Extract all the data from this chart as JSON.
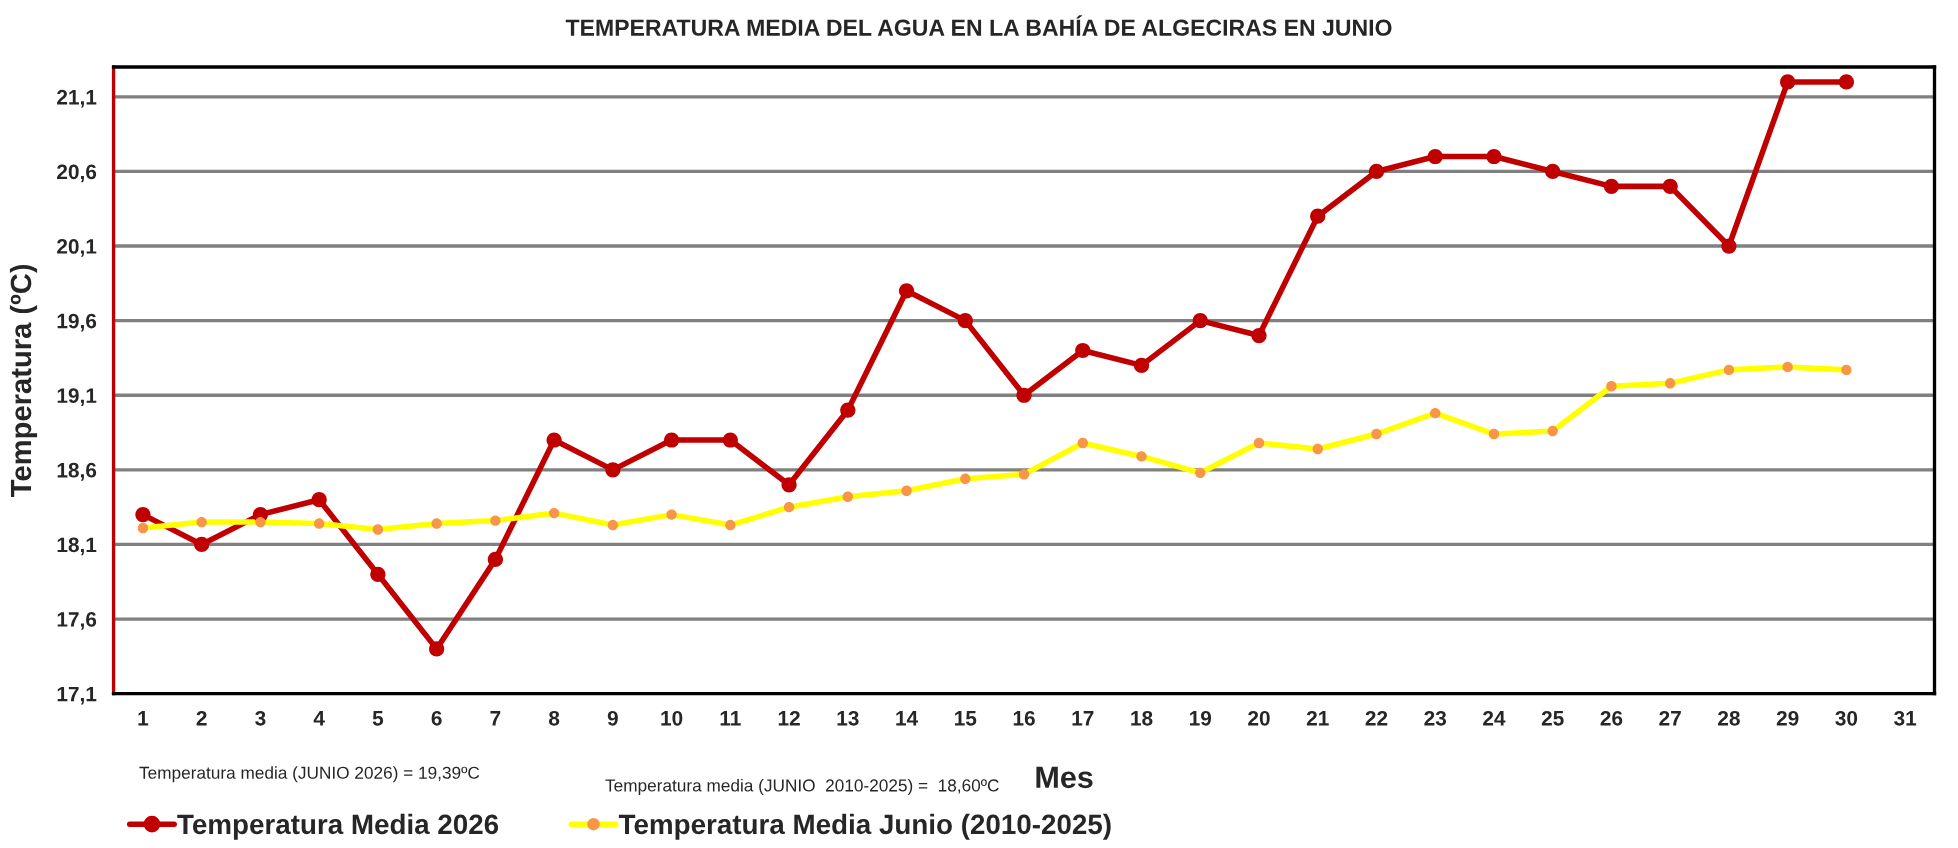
{
  "chart_data": {
    "type": "line",
    "title": "TEMPERATURA MEDIA DEL AGUA EN LA BAHÍA DE ALGECIRAS EN JUNIO",
    "xlabel": "Mes",
    "ylabel": "Temperatura (ºC)",
    "categories": [
      "1",
      "2",
      "3",
      "4",
      "5",
      "6",
      "7",
      "8",
      "9",
      "10",
      "11",
      "12",
      "13",
      "14",
      "15",
      "16",
      "17",
      "18",
      "19",
      "20",
      "21",
      "22",
      "23",
      "24",
      "25",
      "26",
      "27",
      "28",
      "29",
      "30",
      "31"
    ],
    "series": [
      {
        "name": "Temperatura Media 2026",
        "color": "#c00000",
        "values": [
          18.3,
          18.1,
          18.3,
          18.4,
          17.9,
          17.4,
          18.0,
          18.8,
          18.6,
          18.8,
          18.8,
          18.5,
          19.0,
          19.8,
          19.6,
          19.1,
          19.4,
          19.3,
          19.6,
          19.5,
          20.3,
          20.6,
          20.7,
          20.7,
          20.6,
          20.5,
          20.5,
          20.1,
          21.2,
          21.2,
          null
        ]
      },
      {
        "name": "Temperatura Media Junio (2010-2025)",
        "color": "#ffff00",
        "colors": [
          "#f79646",
          "#f79646",
          "#f79646",
          "#f79646",
          "#f79646",
          "#f79646",
          "#f79646",
          "#f79646",
          "#f79646",
          "#f79646",
          "#f79646",
          "#f79646",
          "#f79646",
          "#f79646",
          "#f79646",
          "#f79646",
          "#f79646",
          "#f79646",
          "#f79646",
          "#f79646",
          "#f79646",
          "#f79646",
          "#f79646",
          "#f79646",
          "#f79646",
          "#f79646",
          "#f79646",
          "#f79646",
          "#f79646",
          "#f79646",
          "#f79646"
        ],
        "values": [
          18.21,
          18.25,
          18.25,
          18.24,
          18.2,
          18.24,
          18.26,
          18.31,
          18.23,
          18.3,
          18.23,
          18.35,
          18.42,
          18.46,
          18.54,
          18.57,
          18.78,
          18.69,
          18.58,
          18.78,
          18.74,
          18.84,
          18.98,
          18.84,
          18.86,
          19.16,
          19.18,
          19.27,
          19.29,
          19.27,
          null
        ]
      }
    ],
    "ylim": [
      17.1,
      21.3
    ],
    "yticks": [
      {
        "value": 17.1,
        "label": "17,1"
      },
      {
        "value": 17.6,
        "label": "17,6"
      },
      {
        "value": 18.1,
        "label": "18,1"
      },
      {
        "value": 18.6,
        "label": "18,6"
      },
      {
        "value": 19.1,
        "label": "19,1"
      },
      {
        "value": 19.6,
        "label": "19,6"
      },
      {
        "value": 20.1,
        "label": "20,1"
      },
      {
        "value": 20.6,
        "label": "20,6"
      },
      {
        "value": 21.1,
        "label": "21,1"
      }
    ],
    "grid": "y",
    "legend": "bottom",
    "marker": "circle",
    "line_style": "solid",
    "annotations": [
      "Temperatura media (JUNIO 2026) = 19,39ºC",
      "Temperatura media (JUNIO  2010-2025) =  18,60ºC"
    ]
  }
}
